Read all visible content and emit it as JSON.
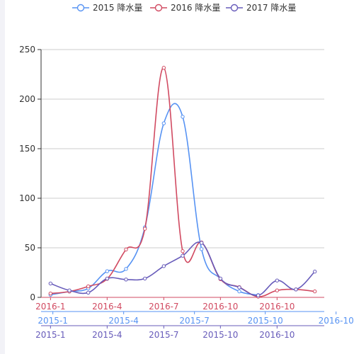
{
  "chart_data": {
    "type": "line",
    "grid": true,
    "legend_position": "top-center",
    "ylim": [
      0,
      250
    ],
    "yticks": [
      0,
      50,
      100,
      150,
      200,
      250
    ],
    "series": [
      {
        "name": "2015 降水量",
        "color": "#5793f3",
        "x_axis_labels": [
          "2015-1",
          "2015-4",
          "2015-7",
          "2015-10",
          "2016-10"
        ],
        "values": [
          2.6,
          5.9,
          9.0,
          26.4,
          28.7,
          70.7,
          175.6,
          182.2,
          48.7,
          18.8,
          6.0,
          2.3
        ]
      },
      {
        "name": "2016 降水量",
        "color": "#d14a61",
        "x_axis_labels": [
          "2016-1",
          "2016-4",
          "2016-7",
          "2016-10",
          "2016-10"
        ],
        "values": [
          3.9,
          5.9,
          11.1,
          18.7,
          48.3,
          69.2,
          231.6,
          46.6,
          55.4,
          18.4,
          10.3,
          0.7,
          7.0,
          8.0,
          6.0
        ]
      },
      {
        "name": "2017 降水量",
        "color": "#675bba",
        "x_axis_labels": [
          "2015-1",
          "2015-4",
          "2015-7",
          "2015-10",
          "2016-10"
        ],
        "values": [
          14.0,
          7.0,
          4.8,
          19.0,
          18.0,
          19.0,
          31.5,
          42.0,
          55.0,
          19.0,
          10.0,
          2.0,
          17.0,
          8.0,
          26.0
        ]
      }
    ]
  }
}
